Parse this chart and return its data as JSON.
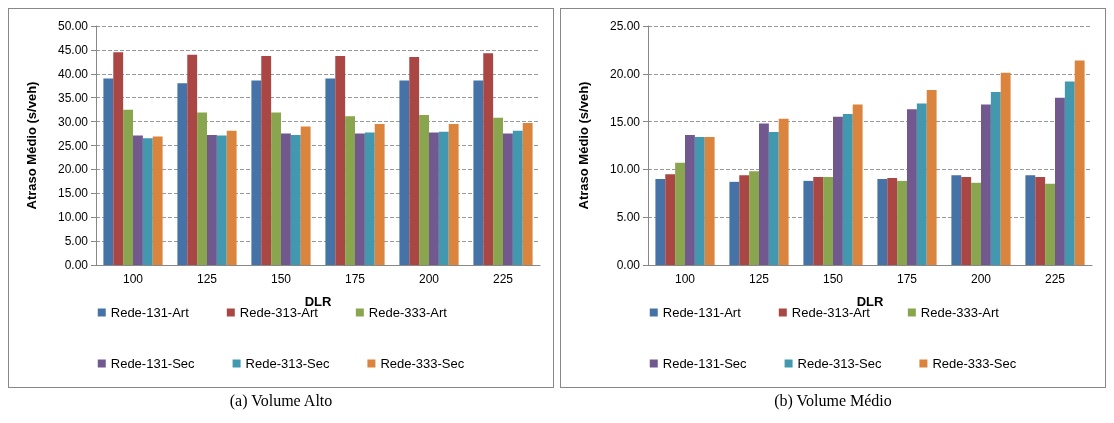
{
  "chart_data": [
    {
      "type": "bar",
      "title": "(a) Volume Alto",
      "xlabel": "DLR",
      "ylabel": "Atraso Médio (s/veh)",
      "categories": [
        "100",
        "125",
        "150",
        "175",
        "200",
        "225"
      ],
      "series": [
        {
          "name": "Rede-131-Art",
          "color": "#4572a7",
          "values": [
            39.0,
            38.0,
            38.6,
            39.0,
            38.6,
            38.6
          ]
        },
        {
          "name": "Rede-313-Art",
          "color": "#aa4643",
          "values": [
            44.5,
            44.0,
            43.7,
            43.7,
            43.5,
            44.3
          ]
        },
        {
          "name": "Rede-333-Art",
          "color": "#89a54e",
          "values": [
            32.5,
            31.9,
            31.9,
            31.1,
            31.4,
            30.8
          ]
        },
        {
          "name": "Rede-131-Sec",
          "color": "#71588f",
          "values": [
            27.1,
            27.2,
            27.5,
            27.5,
            27.7,
            27.5
          ]
        },
        {
          "name": "Rede-313-Sec",
          "color": "#4198af",
          "values": [
            26.5,
            27.1,
            27.2,
            27.7,
            27.9,
            28.1
          ]
        },
        {
          "name": "Rede-333-Sec",
          "color": "#db843d",
          "values": [
            26.9,
            28.1,
            29.0,
            29.5,
            29.5,
            29.7
          ]
        }
      ],
      "ylim": [
        0,
        50
      ],
      "yticks": [
        {
          "value": 0,
          "label": "0.00"
        },
        {
          "value": 5,
          "label": "5.00"
        },
        {
          "value": 10,
          "label": "10.00"
        },
        {
          "value": 15,
          "label": "15.00"
        },
        {
          "value": 20,
          "label": "20.00"
        },
        {
          "value": 25,
          "label": "25.00"
        },
        {
          "value": 30,
          "label": "30.00"
        },
        {
          "value": 35,
          "label": "35.00"
        },
        {
          "value": 40,
          "label": "40.00"
        },
        {
          "value": 45,
          "label": "45.00"
        },
        {
          "value": 50,
          "label": "50.00"
        }
      ],
      "grid": "y",
      "legend": "bottom"
    },
    {
      "type": "bar",
      "title": "(b) Volume Médio",
      "xlabel": "DLR",
      "ylabel": "Atraso Médio (s/veh)",
      "categories": [
        "100",
        "125",
        "150",
        "175",
        "200",
        "225"
      ],
      "series": [
        {
          "name": "Rede-131-Art",
          "color": "#4572a7",
          "values": [
            9.0,
            8.7,
            8.8,
            9.0,
            9.4,
            9.4
          ]
        },
        {
          "name": "Rede-313-Art",
          "color": "#aa4643",
          "values": [
            9.5,
            9.4,
            9.2,
            9.1,
            9.2,
            9.2
          ]
        },
        {
          "name": "Rede-333-Art",
          "color": "#89a54e",
          "values": [
            10.7,
            9.8,
            9.2,
            8.8,
            8.6,
            8.5
          ]
        },
        {
          "name": "Rede-131-Sec",
          "color": "#71588f",
          "values": [
            13.6,
            14.8,
            15.5,
            16.3,
            16.8,
            17.5
          ]
        },
        {
          "name": "Rede-313-Sec",
          "color": "#4198af",
          "values": [
            13.4,
            13.9,
            15.8,
            16.9,
            18.1,
            19.2
          ]
        },
        {
          "name": "Rede-333-Sec",
          "color": "#db843d",
          "values": [
            13.4,
            15.3,
            16.8,
            18.3,
            20.1,
            21.4
          ]
        }
      ],
      "ylim": [
        0,
        25
      ],
      "yticks": [
        {
          "value": 0,
          "label": "0.00"
        },
        {
          "value": 5,
          "label": "5.00"
        },
        {
          "value": 10,
          "label": "10.00"
        },
        {
          "value": 15,
          "label": "15.00"
        },
        {
          "value": 20,
          "label": "20.00"
        },
        {
          "value": 25,
          "label": "25.00"
        }
      ],
      "grid": "y",
      "legend": "bottom"
    }
  ]
}
